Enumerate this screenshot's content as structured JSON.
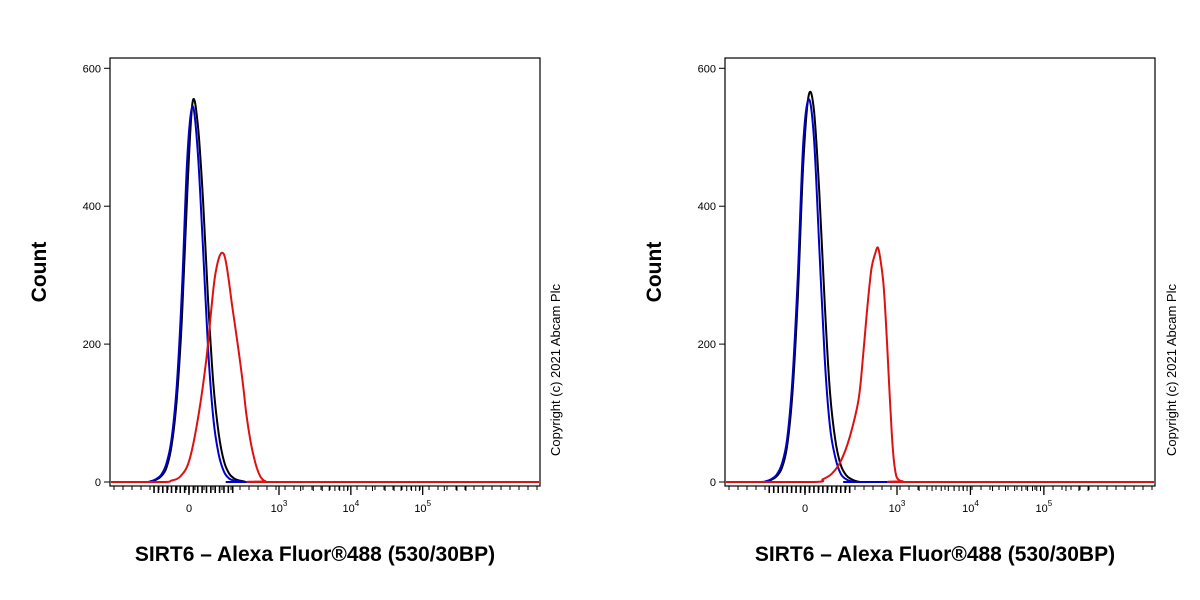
{
  "chart_data": [
    {
      "type": "line",
      "xlabel": "SIRT6 – Alexa Fluor®488 (530/30BP)",
      "ylabel": "Count",
      "ylim": [
        0,
        600
      ],
      "y_ticks": [
        0,
        200,
        400,
        600
      ],
      "x_ticks": [
        {
          "base": "0",
          "exp": ""
        },
        {
          "base": "10",
          "exp": "3"
        },
        {
          "base": "10",
          "exp": "4"
        },
        {
          "base": "10",
          "exp": "5"
        }
      ],
      "x_scale": "biexponential",
      "copyright": "Copyright (c) 2021 Abcam Plc",
      "series": [
        {
          "color": "#000000",
          "x": [
            -250,
            -220,
            -190,
            -160,
            -130,
            -100,
            -70,
            -40,
            -10,
            20,
            50,
            80,
            110,
            140,
            170,
            200,
            230,
            260,
            290,
            320,
            350,
            380
          ],
          "y": [
            0,
            1,
            3,
            8,
            20,
            52,
            120,
            240,
            420,
            550,
            520,
            410,
            260,
            140,
            70,
            30,
            12,
            5,
            2,
            1,
            0,
            0
          ]
        },
        {
          "color": "#0000cc",
          "x": [
            -250,
            -220,
            -190,
            -160,
            -130,
            -100,
            -70,
            -40,
            -10,
            20,
            50,
            80,
            110,
            140,
            170,
            200,
            230,
            260,
            290,
            320,
            350,
            380
          ],
          "y": [
            0,
            1,
            4,
            10,
            26,
            62,
            140,
            280,
            470,
            545,
            480,
            340,
            190,
            90,
            40,
            15,
            5,
            2,
            1,
            0,
            0,
            0
          ]
        },
        {
          "color": "#dd1111",
          "x": [
            -150,
            -100,
            -50,
            0,
            50,
            100,
            150,
            200,
            250,
            300,
            350,
            400,
            450,
            500,
            550,
            600,
            650,
            700
          ],
          "y": [
            0,
            2,
            8,
            30,
            90,
            180,
            300,
            330,
            250,
            160,
            100,
            60,
            35,
            18,
            8,
            3,
            1,
            0
          ]
        }
      ]
    },
    {
      "type": "line",
      "xlabel": "SIRT6 – Alexa Fluor®488 (530/30BP)",
      "ylabel": "Count",
      "ylim": [
        0,
        600
      ],
      "y_ticks": [
        0,
        200,
        400,
        600
      ],
      "x_ticks": [
        {
          "base": "0",
          "exp": ""
        },
        {
          "base": "10",
          "exp": "3"
        },
        {
          "base": "10",
          "exp": "4"
        },
        {
          "base": "10",
          "exp": "5"
        }
      ],
      "x_scale": "biexponential",
      "copyright": "Copyright (c) 2021 Abcam Plc",
      "series": [
        {
          "color": "#000000",
          "x": [
            -250,
            -220,
            -190,
            -160,
            -130,
            -100,
            -70,
            -40,
            -10,
            20,
            50,
            80,
            110,
            140,
            170,
            200,
            230,
            260,
            290,
            320,
            350,
            380
          ],
          "y": [
            0,
            1,
            3,
            8,
            20,
            52,
            130,
            270,
            460,
            560,
            540,
            420,
            260,
            130,
            60,
            25,
            10,
            4,
            1,
            0,
            0,
            0
          ]
        },
        {
          "color": "#0000cc",
          "x": [
            -250,
            -220,
            -190,
            -160,
            -130,
            -100,
            -70,
            -40,
            -10,
            20,
            50,
            80,
            110,
            140,
            170,
            200,
            230,
            260,
            290,
            320,
            350,
            380
          ],
          "y": [
            0,
            1,
            4,
            10,
            26,
            62,
            150,
            300,
            490,
            555,
            500,
            340,
            180,
            80,
            35,
            12,
            4,
            1,
            0,
            0,
            0,
            0
          ]
        },
        {
          "color": "#dd1111",
          "x": [
            50,
            100,
            150,
            200,
            250,
            300,
            350,
            400,
            450,
            500,
            550,
            600,
            650,
            700,
            750,
            800,
            850,
            900,
            950,
            1000,
            1100,
            1200,
            1400
          ],
          "y": [
            0,
            4,
            12,
            30,
            65,
            120,
            190,
            260,
            310,
            330,
            340,
            320,
            290,
            240,
            180,
            120,
            70,
            35,
            15,
            6,
            2,
            1,
            0
          ]
        }
      ]
    }
  ]
}
